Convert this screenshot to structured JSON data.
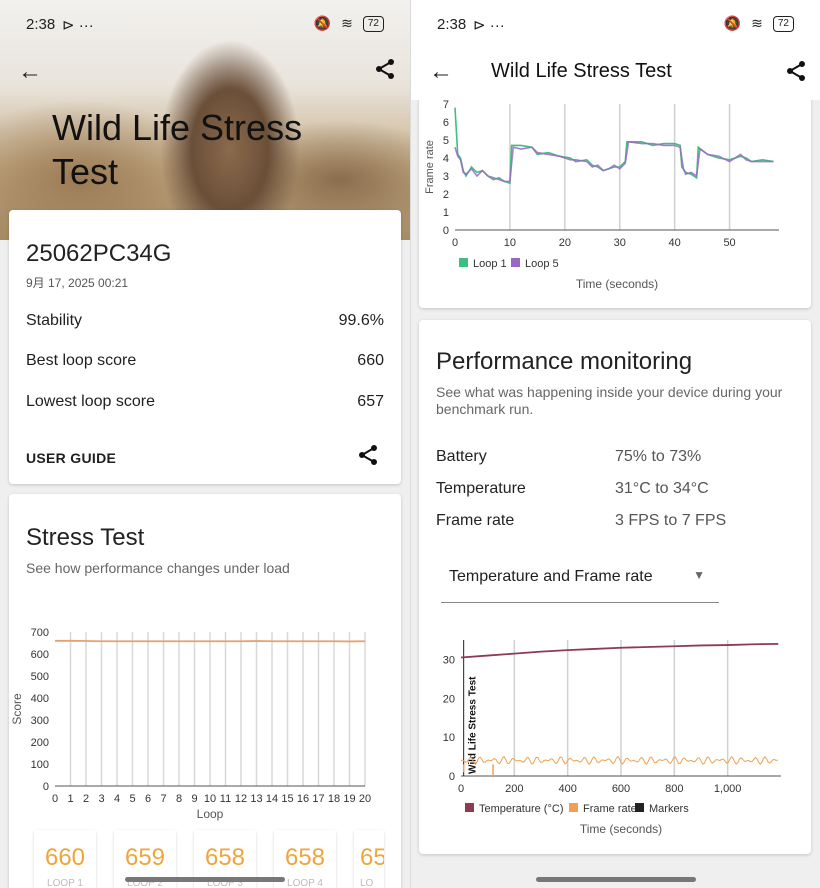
{
  "left": {
    "status": {
      "time": "2:38",
      "icons": "⊳ ···",
      "battery": "72"
    },
    "hero_title": "Wild Life Stress Test",
    "result": {
      "device": "25062PC34G",
      "date": "9月 17, 2025 00:21",
      "rows": [
        {
          "label": "Stability",
          "value": "99.6%"
        },
        {
          "label": "Best loop score",
          "value": "660"
        },
        {
          "label": "Lowest loop score",
          "value": "657"
        }
      ],
      "guide_label": "USER GUIDE"
    },
    "stress": {
      "title": "Stress Test",
      "subtitle": "See how performance changes under load",
      "loops": [
        {
          "score": "660",
          "label": "LOOP 1"
        },
        {
          "score": "659",
          "label": "LOOP 2"
        },
        {
          "score": "658",
          "label": "LOOP 3"
        },
        {
          "score": "658",
          "label": "LOOP 4"
        },
        {
          "score": "65",
          "label": "LO"
        }
      ]
    }
  },
  "right": {
    "status": {
      "time": "2:38",
      "icons": "⊳ ···",
      "battery": "72"
    },
    "app_title": "Wild Life Stress Test",
    "perf": {
      "title": "Performance monitoring",
      "subtitle": "See what was happening inside your device during your benchmark run.",
      "rows": [
        {
          "label": "Battery",
          "value": "75% to 73%"
        },
        {
          "label": "Temperature",
          "value": "31°C to 34°C"
        },
        {
          "label": "Frame rate",
          "value": "3 FPS to 7 FPS"
        }
      ],
      "select_value": "Temperature and Frame rate"
    }
  },
  "chart_data": [
    {
      "type": "line",
      "title": "",
      "xlabel": "Loop",
      "ylabel": "Score",
      "x": [
        1,
        2,
        3,
        4,
        5,
        6,
        7,
        8,
        9,
        10,
        11,
        12,
        13,
        14,
        15,
        16,
        17,
        18,
        19,
        20
      ],
      "xticks": [
        "0",
        "1",
        "2",
        "3",
        "4",
        "5",
        "6",
        "7",
        "8",
        "9",
        "10",
        "11",
        "12",
        "13",
        "14",
        "15",
        "16",
        "17",
        "18",
        "19",
        "20"
      ],
      "yticks": [
        "0",
        "100",
        "200",
        "300",
        "400",
        "500",
        "600",
        "700"
      ],
      "ylim": [
        0,
        700
      ],
      "series": [
        {
          "values": [
            660,
            659,
            658,
            658,
            658,
            658,
            658,
            658,
            658,
            658,
            658,
            658,
            659,
            658,
            658,
            658,
            658,
            658,
            657,
            658
          ],
          "color": "#e8a06e"
        }
      ],
      "grid": "vertical"
    },
    {
      "type": "line",
      "xlabel": "Time (seconds)",
      "ylabel": "Frame rate",
      "xticks": [
        "0",
        "10",
        "20",
        "30",
        "40",
        "50"
      ],
      "yticks": [
        "0",
        "1",
        "2",
        "3",
        "4",
        "5",
        "6",
        "7"
      ],
      "xlim": [
        0,
        59
      ],
      "ylim": [
        0,
        7
      ],
      "legend": [
        "Loop 1",
        "Loop 5"
      ],
      "colors": [
        "#3fbf7f",
        "#9a67c4"
      ],
      "series": [
        {
          "name": "Loop 1",
          "points": [
            [
              0,
              6.8
            ],
            [
              0.5,
              4.2
            ],
            [
              1,
              4
            ],
            [
              1.5,
              3.3
            ],
            [
              2,
              3
            ],
            [
              3,
              3.5
            ],
            [
              4,
              3.2
            ],
            [
              5,
              3.3
            ],
            [
              6,
              3
            ],
            [
              7,
              2.8
            ],
            [
              8,
              2.9
            ],
            [
              9,
              2.7
            ],
            [
              10,
              2.6
            ],
            [
              10.3,
              4.7
            ],
            [
              12,
              4.7
            ],
            [
              14,
              4.6
            ],
            [
              15,
              4.2
            ],
            [
              17,
              4.3
            ],
            [
              19,
              4.1
            ],
            [
              21,
              4
            ],
            [
              22,
              3.8
            ],
            [
              24,
              3.9
            ],
            [
              25,
              3.6
            ],
            [
              26,
              3.5
            ],
            [
              27,
              3.3
            ],
            [
              28,
              3.4
            ],
            [
              29,
              3.5
            ],
            [
              30,
              3.5
            ],
            [
              31,
              3.8
            ],
            [
              31.3,
              4.9
            ],
            [
              34,
              4.9
            ],
            [
              36,
              4.7
            ],
            [
              38,
              4.8
            ],
            [
              40,
              4.8
            ],
            [
              41,
              4.7
            ],
            [
              41.3,
              3.5
            ],
            [
              42,
              3.2
            ],
            [
              43,
              3.1
            ],
            [
              44,
              2.9
            ],
            [
              44.3,
              4.6
            ],
            [
              46,
              4.2
            ],
            [
              48,
              4
            ],
            [
              50,
              3.9
            ],
            [
              52,
              4.1
            ],
            [
              53,
              4
            ],
            [
              54,
              3.8
            ],
            [
              56,
              3.9
            ],
            [
              58,
              3.8
            ]
          ]
        },
        {
          "name": "Loop 5",
          "points": [
            [
              0,
              4.6
            ],
            [
              0.5,
              4.1
            ],
            [
              1,
              3.9
            ],
            [
              1.5,
              3.2
            ],
            [
              2,
              3.1
            ],
            [
              3,
              3.4
            ],
            [
              4,
              3
            ],
            [
              5,
              3.3
            ],
            [
              6,
              3
            ],
            [
              7,
              2.9
            ],
            [
              8,
              2.8
            ],
            [
              9,
              2.7
            ],
            [
              10,
              2.7
            ],
            [
              10.6,
              4.6
            ],
            [
              12,
              4.5
            ],
            [
              14,
              4.6
            ],
            [
              15,
              4.3
            ],
            [
              17,
              4.2
            ],
            [
              19,
              4.1
            ],
            [
              21,
              3.9
            ],
            [
              22,
              3.9
            ],
            [
              24,
              3.8
            ],
            [
              25,
              3.5
            ],
            [
              26,
              3.6
            ],
            [
              27,
              3.3
            ],
            [
              28,
              3.4
            ],
            [
              29,
              3.6
            ],
            [
              30,
              3.4
            ],
            [
              31,
              3.7
            ],
            [
              31.6,
              4.9
            ],
            [
              34,
              4.8
            ],
            [
              36,
              4.8
            ],
            [
              38,
              4.7
            ],
            [
              40,
              4.7
            ],
            [
              41,
              4.6
            ],
            [
              41.6,
              3.4
            ],
            [
              42,
              3.1
            ],
            [
              43,
              3.2
            ],
            [
              44,
              3
            ],
            [
              44.6,
              4.5
            ],
            [
              46,
              4.2
            ],
            [
              48,
              4.1
            ],
            [
              50,
              3.8
            ],
            [
              52,
              4.2
            ],
            [
              53,
              3.9
            ],
            [
              54,
              3.8
            ],
            [
              56,
              3.8
            ],
            [
              58,
              3.8
            ]
          ]
        }
      ]
    },
    {
      "type": "line",
      "xlabel": "Time (seconds)",
      "xticks": [
        "0",
        "200",
        "400",
        "600",
        "800",
        "1,000"
      ],
      "yticks": [
        "0",
        "10",
        "20",
        "30"
      ],
      "xlim": [
        0,
        1200
      ],
      "ylim": [
        0,
        35
      ],
      "marker_label": "Wild Life Stress Test",
      "legend": [
        "Temperature (°C)",
        "Frame rate",
        "Markers"
      ],
      "colors": [
        "#8e3a52",
        "#f0a050",
        "#222222"
      ],
      "temperature": {
        "points": [
          [
            0,
            30.5
          ],
          [
            100,
            31
          ],
          [
            200,
            31.5
          ],
          [
            300,
            32
          ],
          [
            400,
            32.4
          ],
          [
            500,
            32.7
          ],
          [
            600,
            33
          ],
          [
            700,
            33.2
          ],
          [
            800,
            33.4
          ],
          [
            900,
            33.6
          ],
          [
            1000,
            33.7
          ],
          [
            1100,
            33.9
          ],
          [
            1190,
            34
          ]
        ]
      },
      "frame_rate": {
        "min": 3,
        "max": 5,
        "dip_points": [
          [
            10,
            1
          ],
          [
            120,
            0
          ]
        ]
      },
      "markers_x": [
        10
      ]
    }
  ]
}
